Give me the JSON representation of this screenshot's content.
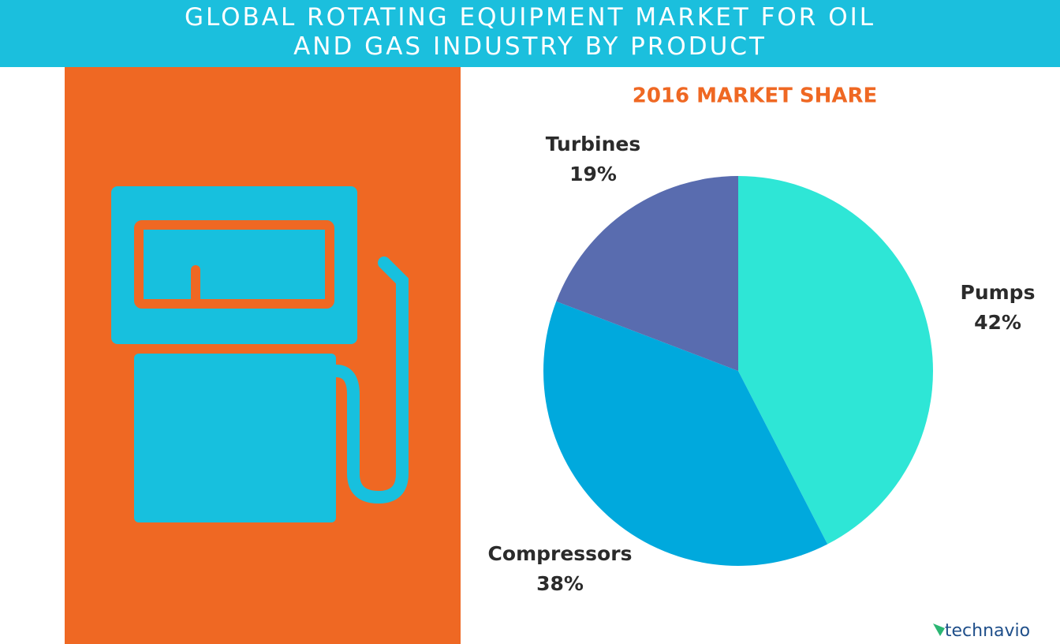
{
  "chart_data": {
    "type": "pie",
    "title": "GLOBAL ROTATING EQUIPMENT MARKET FOR OIL AND GAS INDUSTRY BY PRODUCT",
    "subtitle": "2016 MARKET SHARE",
    "categories": [
      "Pumps",
      "Compressors",
      "Turbines"
    ],
    "values": [
      42,
      38,
      19
    ],
    "value_labels": [
      "42%",
      "38%",
      "19%"
    ],
    "colors": [
      "#2ee6d6",
      "#00a9dd",
      "#596caf"
    ]
  },
  "brand": "technavio"
}
